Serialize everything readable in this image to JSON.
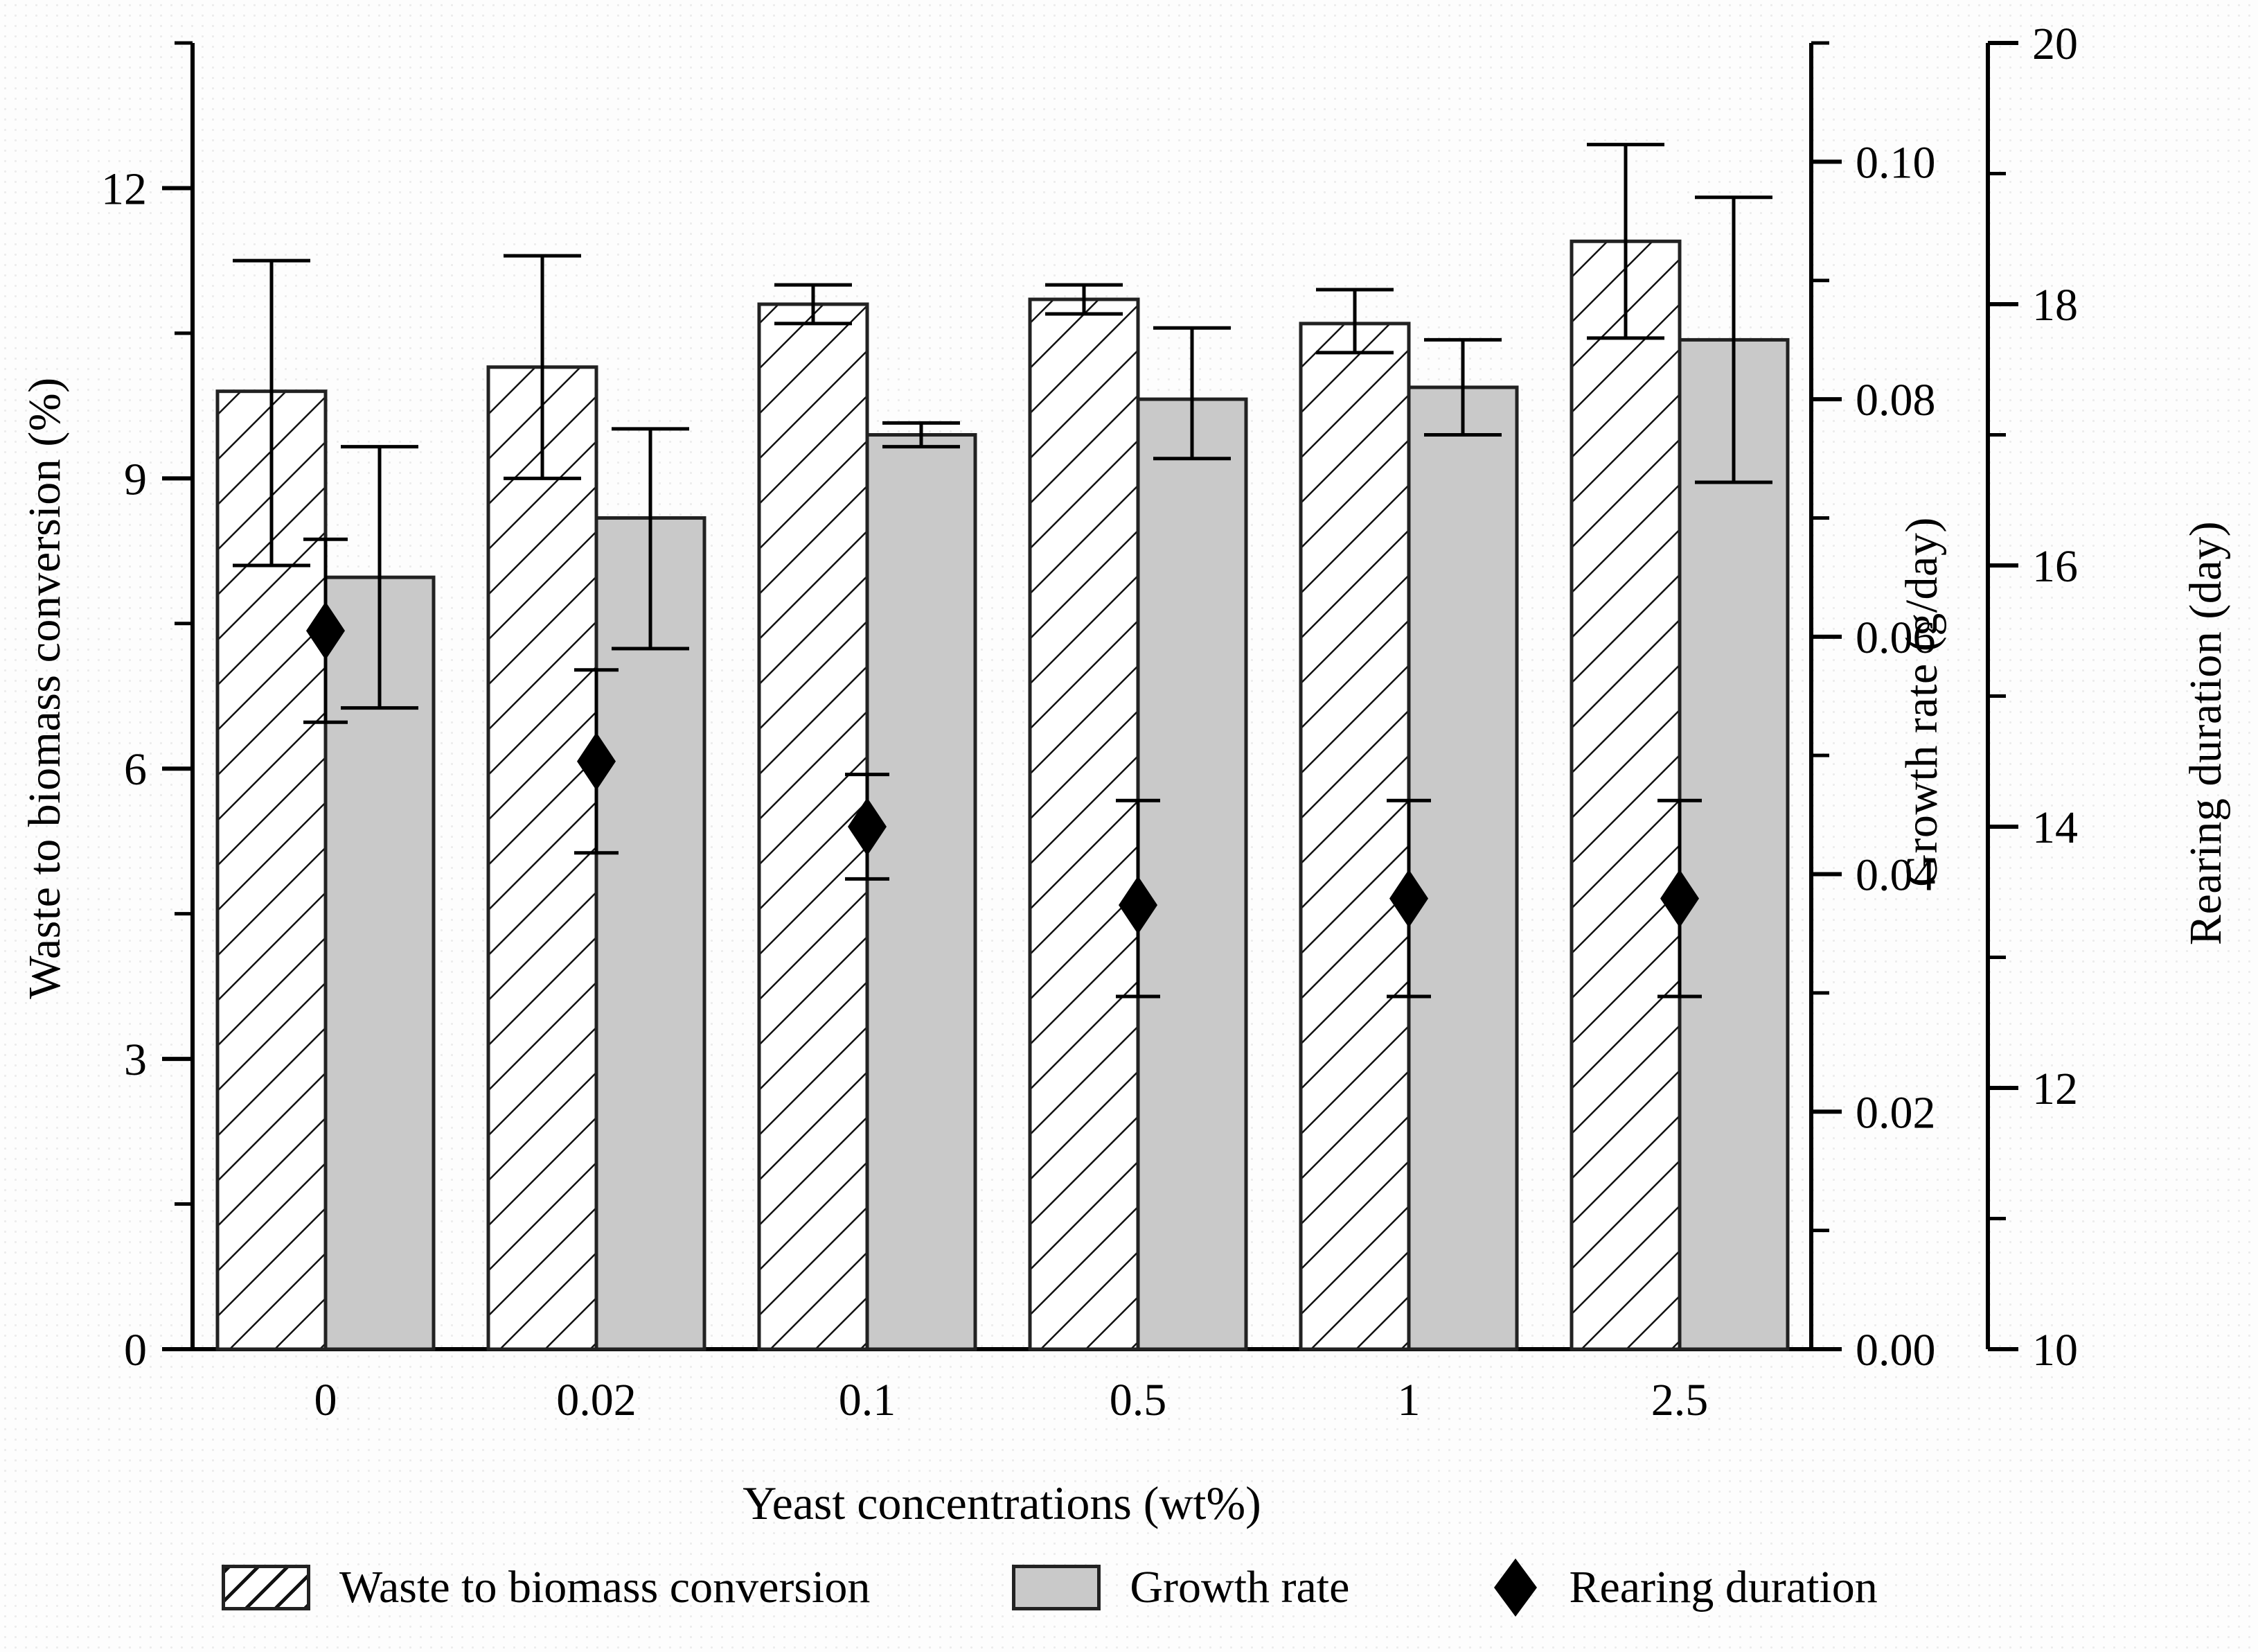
{
  "figure": {
    "background": "#fdfdfd",
    "axis_color": "#000000",
    "bar_gray_fill": "#c9c9c9",
    "bar_border": "#222222",
    "diamond_color": "#000000"
  },
  "axes": {
    "x": {
      "title": "Yeast concentrations (wt%)",
      "tick_labels": [
        "0",
        "0.02",
        "0.1",
        "0.5",
        "1",
        "2.5"
      ]
    },
    "y_left": {
      "title": "Waste to biomass conversion (%)",
      "min": 0,
      "max": 13.5,
      "major_ticks": [
        0,
        3,
        6,
        9,
        12
      ],
      "major_labels": [
        "0",
        "3",
        "6",
        "9",
        "12"
      ],
      "minor_ticks": [
        1.5,
        4.5,
        7.5,
        10.5,
        13.5
      ]
    },
    "y_right_growth": {
      "title": "Growth rate (g/day)",
      "min": 0,
      "max": 0.11,
      "major_ticks": [
        0,
        0.02,
        0.04,
        0.06,
        0.08,
        0.1
      ],
      "major_labels": [
        "0.00",
        "0.02",
        "0.04",
        "0.06",
        "0.08",
        "0.10"
      ],
      "minor_ticks": [
        0.01,
        0.03,
        0.05,
        0.07,
        0.09,
        0.11
      ]
    },
    "y_right_rearing": {
      "title": "Rearing duration (day)",
      "min": 10,
      "max": 20,
      "major_ticks": [
        10,
        12,
        14,
        16,
        18,
        20
      ],
      "major_labels": [
        "10",
        "12",
        "14",
        "16",
        "18",
        "20"
      ],
      "minor_ticks": [
        11,
        13,
        15,
        17,
        19
      ]
    }
  },
  "chart_data": {
    "type": "bar",
    "title": "",
    "xlabel": "Yeast concentrations (wt%)",
    "categories": [
      "0",
      "0.02",
      "0.1",
      "0.5",
      "1",
      "2.5"
    ],
    "series": [
      {
        "name": "Waste to biomass conversion",
        "kind": "bar",
        "axis": "left",
        "style": "hatched",
        "values": [
          9.9,
          10.15,
          10.8,
          10.85,
          10.6,
          11.45
        ],
        "err_low": [
          8.1,
          9.0,
          10.6,
          10.7,
          10.3,
          10.45
        ],
        "err_high": [
          11.25,
          11.3,
          11.0,
          11.0,
          10.95,
          12.45
        ]
      },
      {
        "name": "Growth rate",
        "kind": "bar",
        "axis": "growth",
        "style": "gray",
        "values": [
          0.065,
          0.07,
          0.077,
          0.08,
          0.081,
          0.085
        ],
        "err_low": [
          0.054,
          0.059,
          0.076,
          0.075,
          0.077,
          0.073
        ],
        "err_high": [
          0.076,
          0.0775,
          0.078,
          0.086,
          0.085,
          0.097
        ]
      },
      {
        "name": "Rearing duration",
        "kind": "scatter-diamond",
        "axis": "rearing",
        "style": "diamond",
        "values": [
          15.5,
          14.5,
          14.0,
          13.4,
          13.45,
          13.45
        ],
        "err_low": [
          14.8,
          13.8,
          13.6,
          12.7,
          12.7,
          12.7
        ],
        "err_high": [
          16.2,
          15.2,
          14.4,
          14.2,
          14.2,
          14.2
        ]
      }
    ],
    "axis_ranges": {
      "left": [
        0,
        13.5
      ],
      "growth": [
        0,
        0.11
      ],
      "rearing": [
        10,
        20
      ]
    },
    "grid": false,
    "legend_position": "bottom"
  },
  "legend": {
    "items": [
      {
        "label": "Waste to biomass conversion",
        "swatch": "hatched-bar"
      },
      {
        "label": "Growth rate",
        "swatch": "gray-bar"
      },
      {
        "label": "Rearing duration",
        "swatch": "black-diamond"
      }
    ]
  }
}
